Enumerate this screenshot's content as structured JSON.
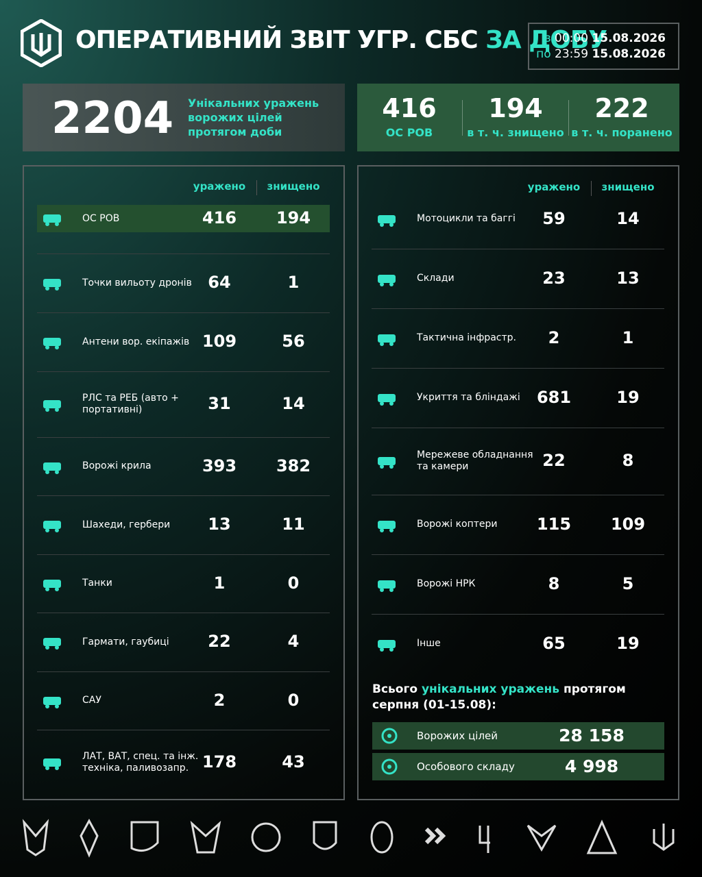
{
  "header": {
    "title_main": "ОПЕРАТИВНИЙ ЗВІТ УГР. СБС",
    "title_accent": "ЗА ДОБУ",
    "period": {
      "from_label": "з",
      "from_time": "00:00",
      "from_date": "15.08.2026",
      "to_label": "по",
      "to_time": "23:59",
      "to_date": "15.08.2026"
    }
  },
  "summary": {
    "total": 2204,
    "total_label": "Унікальних уражень ворожих цілей протягом доби",
    "personnel": [
      {
        "value": 416,
        "label": "ОС РОВ"
      },
      {
        "value": 194,
        "label": "в т. ч. знищено"
      },
      {
        "value": 222,
        "label": "в т. ч. поранено"
      }
    ]
  },
  "left_table": {
    "columns": [
      "уражено",
      "знищено"
    ],
    "rows": [
      {
        "label": "ОС РОВ",
        "hit": 416,
        "destroyed": 194
      },
      {
        "label": "Точки вильоту дронів",
        "hit": 64,
        "destroyed": 1
      },
      {
        "label": "Антени вор. екіпажів",
        "hit": 109,
        "destroyed": 56
      },
      {
        "label": "РЛС та РЕБ (авто + портативні)",
        "hit": 31,
        "destroyed": 14
      },
      {
        "label": "Ворожі крила",
        "hit": 393,
        "destroyed": 382
      },
      {
        "label": "Шахеди, гербери",
        "hit": 13,
        "destroyed": 11
      },
      {
        "label": "Танки",
        "hit": 1,
        "destroyed": 0
      },
      {
        "label": "Гармати, гаубиці",
        "hit": 22,
        "destroyed": 4
      },
      {
        "label": "САУ",
        "hit": 2,
        "destroyed": 0
      },
      {
        "label": "ЛАТ, ВАТ, спец. та інж. техніка, паливозапр.",
        "hit": 178,
        "destroyed": 43
      }
    ]
  },
  "right_table": {
    "columns": [
      "уражено",
      "знищено"
    ],
    "rows": [
      {
        "label": "Мотоцикли та баггі",
        "hit": 59,
        "destroyed": 14
      },
      {
        "label": "Склади",
        "hit": 23,
        "destroyed": 13
      },
      {
        "label": "Тактична інфрастр.",
        "hit": 2,
        "destroyed": 1
      },
      {
        "label": "Укриття та бліндажі",
        "hit": 681,
        "destroyed": 19
      },
      {
        "label": "Мережеве обладнання та камери",
        "hit": 22,
        "destroyed": 8
      },
      {
        "label": "Ворожі коптери",
        "hit": 115,
        "destroyed": 109
      },
      {
        "label": "Ворожі НРК",
        "hit": 8,
        "destroyed": 5
      },
      {
        "label": "Інше",
        "hit": 65,
        "destroyed": 19
      }
    ]
  },
  "totals": {
    "title_prefix": "Всього",
    "title_accent": "унікальних уражень",
    "title_suffix": "протягом серпня (01-15.08):",
    "rows": [
      {
        "label": "Ворожих цілей",
        "value": "28 158"
      },
      {
        "label": "Особового складу",
        "value": "4 998"
      }
    ]
  }
}
